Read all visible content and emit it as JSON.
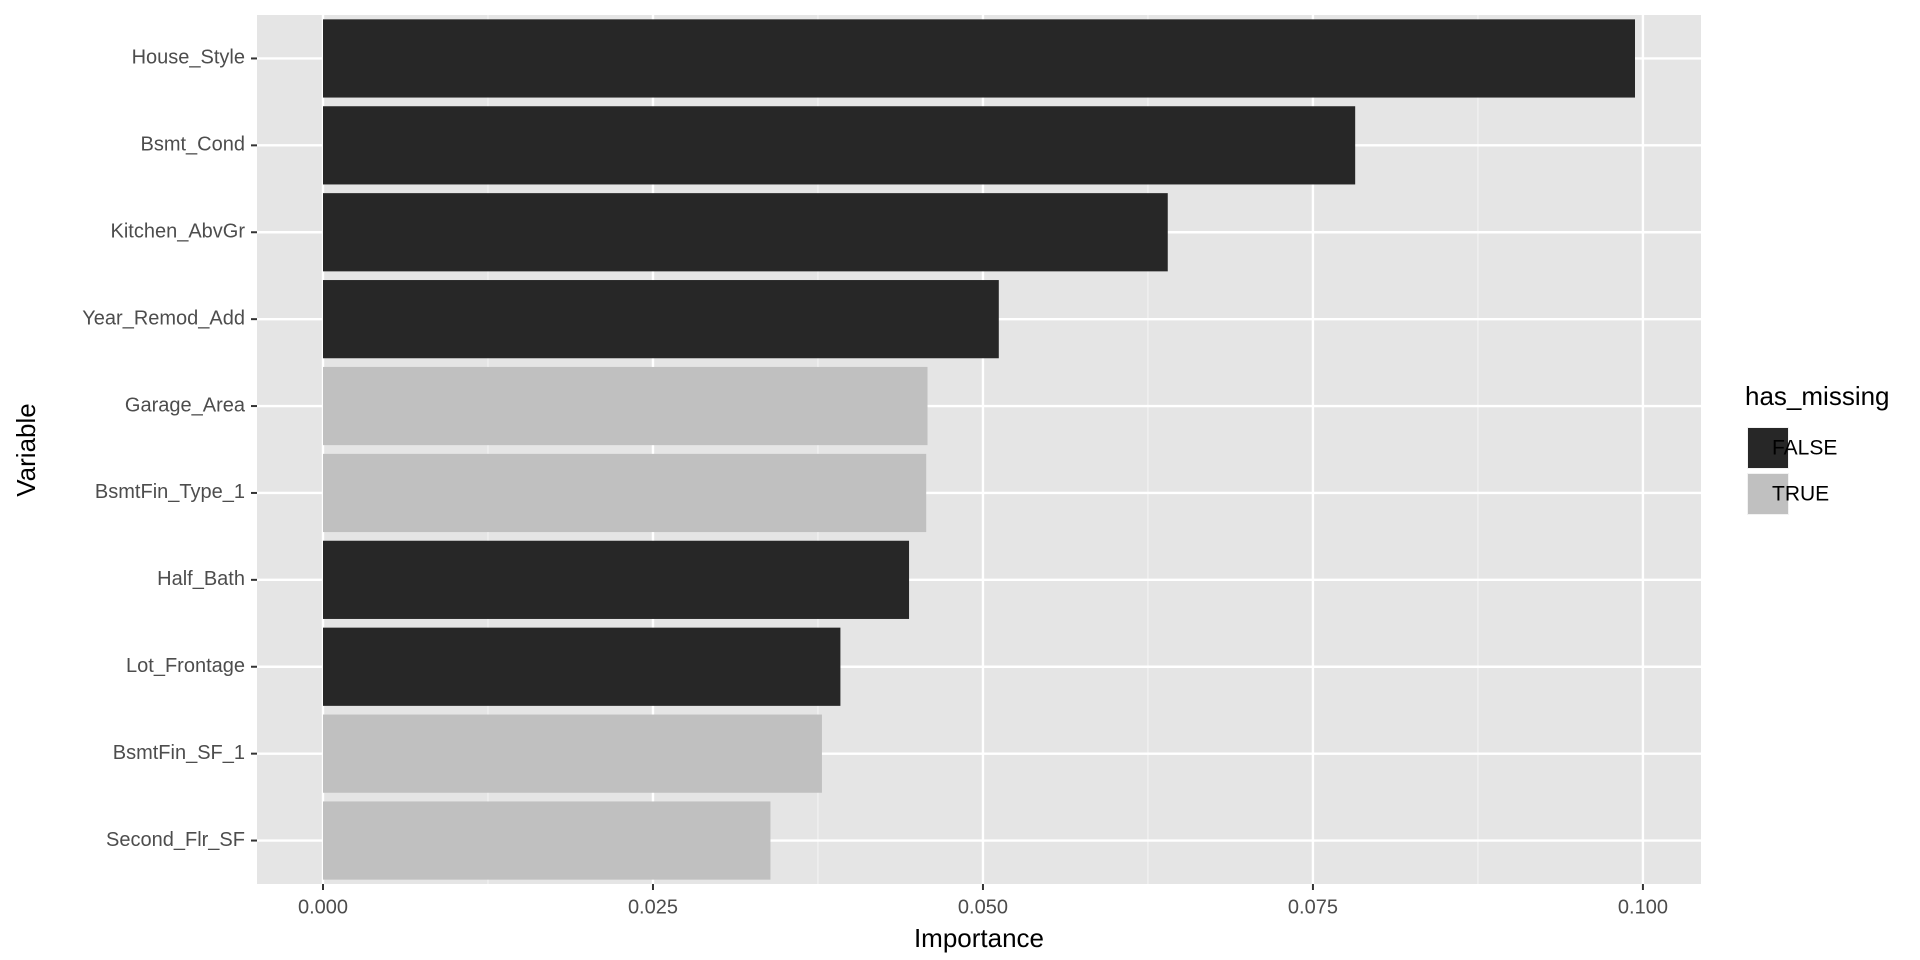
{
  "chart_data": {
    "type": "barh",
    "xlabel": "Importance",
    "ylabel": "Variable",
    "categories": [
      "House_Style",
      "Bsmt_Cond",
      "Kitchen_AbvGr",
      "Year_Remod_Add",
      "Garage_Area",
      "BsmtFin_Type_1",
      "Half_Bath",
      "Lot_Frontage",
      "BsmtFin_SF_1",
      "Second_Flr_SF"
    ],
    "series": [
      {
        "name": "FALSE",
        "color": "#272727",
        "values": [
          0.0994,
          0.0782,
          0.064,
          0.0512,
          null,
          null,
          0.0444,
          0.0392,
          null,
          null
        ]
      },
      {
        "name": "TRUE",
        "color": "#c0c0c0",
        "values": [
          null,
          null,
          null,
          null,
          0.0458,
          0.0457,
          null,
          null,
          0.0378,
          0.0339
        ]
      }
    ],
    "legend_title": "has_missing",
    "legend": "right",
    "xlim": [
      -0.005,
      0.1044
    ],
    "xticks": [
      {
        "value": 0,
        "label": "0.000"
      },
      {
        "value": 0.025,
        "label": "0.025"
      },
      {
        "value": 0.05,
        "label": "0.050"
      },
      {
        "value": 0.075,
        "label": "0.075"
      },
      {
        "value": 0.1,
        "label": "0.100"
      }
    ],
    "grid": true
  }
}
